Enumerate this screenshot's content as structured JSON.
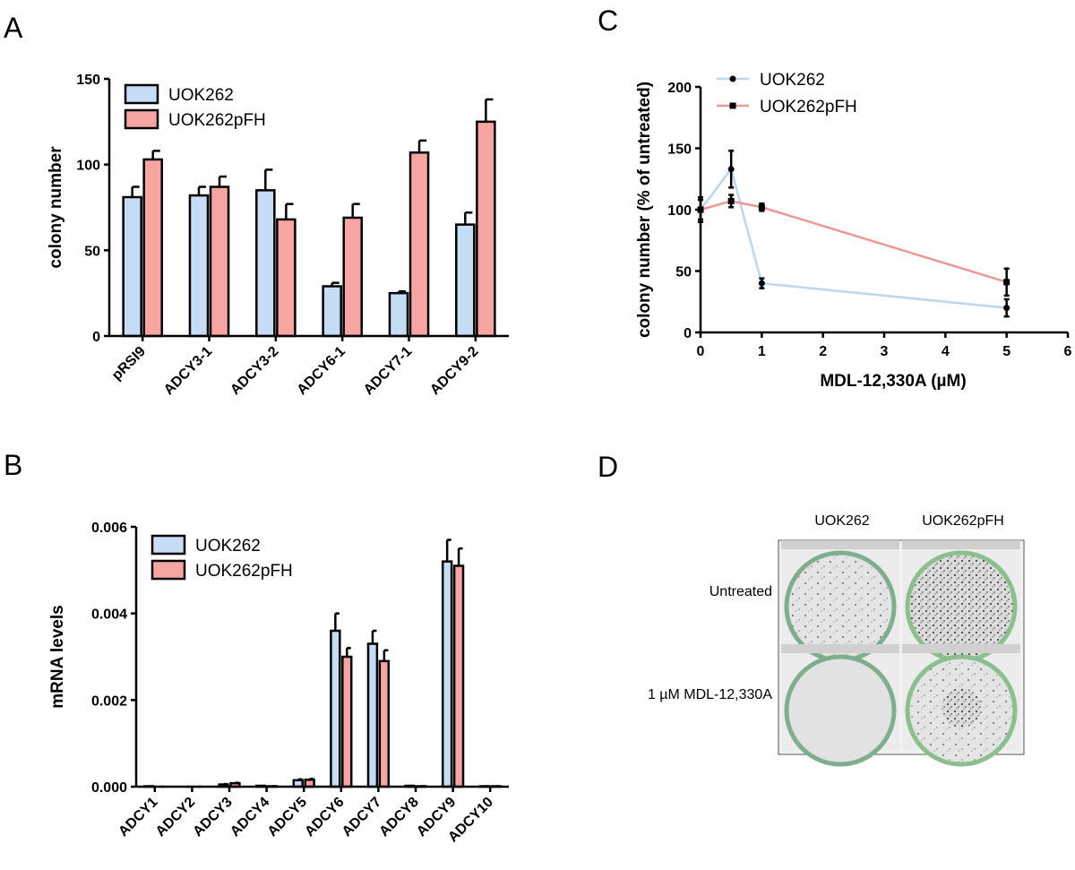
{
  "chart_data": [
    {
      "type": "bar",
      "panel": "A",
      "ylabel": "colony number",
      "categories": [
        "pRSI9",
        "ADCY3-1",
        "ADCY3-2",
        "ADCY6-1",
        "ADCY7-1",
        "ADCY9-2"
      ],
      "series": [
        {
          "name": "UOK262",
          "color": "#c6dcf5",
          "values": [
            81,
            82,
            85,
            29,
            25,
            65
          ],
          "errors": [
            6,
            5,
            12,
            2,
            1,
            7
          ]
        },
        {
          "name": "UOK262pFH",
          "color": "#f6a5a3",
          "values": [
            103,
            87,
            68,
            69,
            107,
            125
          ],
          "errors": [
            5,
            6,
            9,
            8,
            7,
            13
          ]
        }
      ],
      "ylim": [
        0,
        150
      ],
      "yticks": [
        0,
        50,
        100,
        150
      ]
    },
    {
      "type": "bar",
      "panel": "B",
      "ylabel": "mRNA levels",
      "categories": [
        "ADCY1",
        "ADCY2",
        "ADCY3",
        "ADCY4",
        "ADCY5",
        "ADCY6",
        "ADCY7",
        "ADCY8",
        "ADCY9",
        "ADCY10"
      ],
      "series": [
        {
          "name": "UOK262",
          "color": "#c6dcf5",
          "values": [
            1e-05,
            0,
            5e-05,
            2e-05,
            0.00015,
            0.0036,
            0.0033,
            2e-05,
            0.0052,
            1e-05
          ],
          "errors": [
            0,
            0,
            1e-05,
            0,
            2e-05,
            0.0004,
            0.0003,
            0,
            0.0005,
            0
          ]
        },
        {
          "name": "UOK262pFH",
          "color": "#f6a5a3",
          "values": [
            0,
            0,
            8e-05,
            1e-05,
            0.00016,
            0.003,
            0.0029,
            1e-05,
            0.0051,
            1e-05
          ],
          "errors": [
            0,
            0,
            1e-05,
            0,
            2e-05,
            0.0002,
            0.00025,
            0,
            0.0004,
            0
          ]
        }
      ],
      "ylim": [
        0,
        0.006
      ],
      "yticks": [
        {
          "value": 0,
          "label": "0.000"
        },
        {
          "value": 0.002,
          "label": "0.002"
        },
        {
          "value": 0.004,
          "label": "0.004"
        },
        {
          "value": 0.006,
          "label": "0.006"
        }
      ]
    },
    {
      "type": "line",
      "panel": "C",
      "ylabel": "colony number (% of untreated)",
      "xlabel": "MDL-12,330A (µM)",
      "x": [
        0,
        0.5,
        1,
        5
      ],
      "series": [
        {
          "name": "UOK262",
          "color": "#bcd6ee",
          "marker": "circle",
          "values": [
            100,
            133,
            40,
            20
          ],
          "errors": [
            10,
            15,
            4,
            7
          ]
        },
        {
          "name": "UOK262pFH",
          "color": "#ec9896",
          "marker": "square",
          "values": [
            100,
            107,
            102,
            41
          ],
          "errors": [
            8,
            5,
            3,
            11
          ]
        }
      ],
      "xlim": [
        0,
        6
      ],
      "xticks": [
        0,
        1,
        2,
        3,
        4,
        5,
        6
      ],
      "ylim": [
        0,
        200
      ],
      "yticks": [
        0,
        50,
        100,
        150,
        200
      ]
    }
  ],
  "panel_d": {
    "label": "D",
    "columns": [
      "UOK262",
      "UOK262pFH"
    ],
    "rows": [
      "Untreated",
      "1 µM MDL-12,330A"
    ]
  }
}
